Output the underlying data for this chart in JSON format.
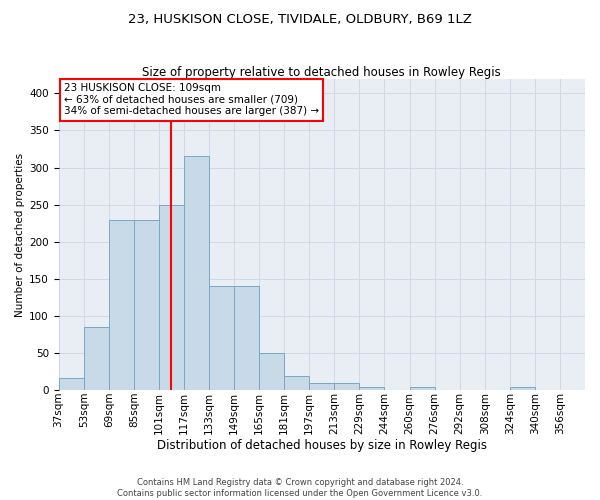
{
  "title": "23, HUSKISON CLOSE, TIVIDALE, OLDBURY, B69 1LZ",
  "subtitle": "Size of property relative to detached houses in Rowley Regis",
  "xlabel": "Distribution of detached houses by size in Rowley Regis",
  "ylabel": "Number of detached properties",
  "footer_line1": "Contains HM Land Registry data © Crown copyright and database right 2024.",
  "footer_line2": "Contains public sector information licensed under the Open Government Licence v3.0.",
  "categories": [
    "37sqm",
    "53sqm",
    "69sqm",
    "85sqm",
    "101sqm",
    "117sqm",
    "133sqm",
    "149sqm",
    "165sqm",
    "181sqm",
    "197sqm",
    "213sqm",
    "229sqm",
    "244sqm",
    "260sqm",
    "276sqm",
    "292sqm",
    "308sqm",
    "324sqm",
    "340sqm",
    "356sqm"
  ],
  "values": [
    17,
    85,
    230,
    230,
    250,
    315,
    140,
    140,
    50,
    20,
    10,
    10,
    5,
    0,
    5,
    0,
    0,
    0,
    5,
    0,
    0
  ],
  "bar_color": "#c8d9e8",
  "bar_edge_color": "#7aa7c7",
  "grid_color": "#d0d8e8",
  "background_color": "#e8eef4",
  "annotation_line1": "23 HUSKISON CLOSE: 109sqm",
  "annotation_line2": "← 63% of detached houses are smaller (709)",
  "annotation_line3": "34% of semi-detached houses are larger (387) →",
  "vline_x": 109,
  "ylim": [
    0,
    420
  ],
  "yticks": [
    0,
    50,
    100,
    150,
    200,
    250,
    300,
    350,
    400
  ],
  "title_fontsize": 9.5,
  "subtitle_fontsize": 8.5,
  "xlabel_fontsize": 8.5,
  "ylabel_fontsize": 7.5,
  "tick_fontsize": 7.5,
  "footer_fontsize": 6.0
}
